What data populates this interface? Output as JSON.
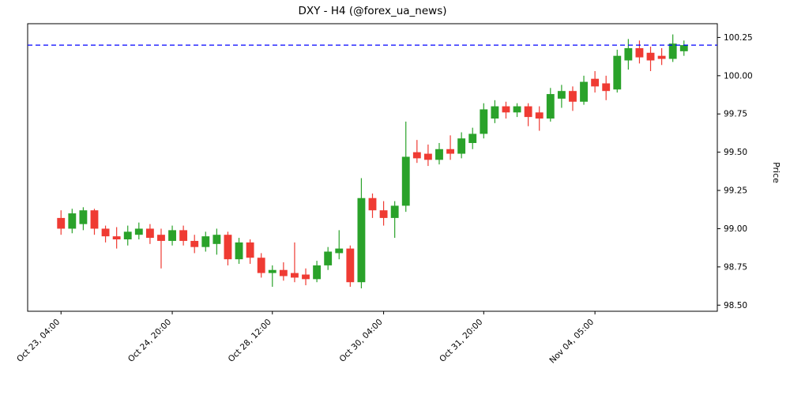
{
  "chart_data": {
    "type": "candlestick",
    "title": "DXY - H4 (@forex_ua_news)",
    "xlabel": "",
    "ylabel": "Price",
    "ylim": [
      98.46,
      100.34
    ],
    "grid": false,
    "y_axis_side": "right",
    "y_ticks": [
      98.5,
      98.75,
      99.0,
      99.25,
      99.5,
      99.75,
      100.0,
      100.25
    ],
    "x_ticks": [
      {
        "index": 0,
        "label": "Oct 23, 04:00"
      },
      {
        "index": 10,
        "label": "Oct 24, 20:00"
      },
      {
        "index": 19,
        "label": "Oct 28, 12:00"
      },
      {
        "index": 29,
        "label": "Oct 30, 04:00"
      },
      {
        "index": 38,
        "label": "Oct 31, 20:00"
      },
      {
        "index": 48,
        "label": "Nov 04, 05:00"
      }
    ],
    "hline": {
      "value": 100.2,
      "color": "#0000ff",
      "style": "dashed"
    },
    "colors": {
      "up": "#2aa22a",
      "down": "#ef3b33"
    },
    "candles": [
      {
        "o": 99.07,
        "h": 99.12,
        "l": 98.96,
        "c": 99.0
      },
      {
        "o": 99.0,
        "h": 99.13,
        "l": 98.97,
        "c": 99.1
      },
      {
        "o": 99.03,
        "h": 99.14,
        "l": 98.99,
        "c": 99.12
      },
      {
        "o": 99.12,
        "h": 99.13,
        "l": 98.96,
        "c": 99.0
      },
      {
        "o": 99.0,
        "h": 99.02,
        "l": 98.91,
        "c": 98.95
      },
      {
        "o": 98.95,
        "h": 99.01,
        "l": 98.87,
        "c": 98.93
      },
      {
        "o": 98.93,
        "h": 99.02,
        "l": 98.89,
        "c": 98.98
      },
      {
        "o": 98.96,
        "h": 99.04,
        "l": 98.93,
        "c": 99.0
      },
      {
        "o": 99.0,
        "h": 99.03,
        "l": 98.9,
        "c": 98.94
      },
      {
        "o": 98.96,
        "h": 99.0,
        "l": 98.74,
        "c": 98.92
      },
      {
        "o": 98.92,
        "h": 99.02,
        "l": 98.89,
        "c": 98.99
      },
      {
        "o": 98.99,
        "h": 99.02,
        "l": 98.89,
        "c": 98.92
      },
      {
        "o": 98.92,
        "h": 98.96,
        "l": 98.84,
        "c": 98.88
      },
      {
        "o": 98.88,
        "h": 98.98,
        "l": 98.85,
        "c": 98.95
      },
      {
        "o": 98.9,
        "h": 99.0,
        "l": 98.83,
        "c": 98.96
      },
      {
        "o": 98.96,
        "h": 98.98,
        "l": 98.76,
        "c": 98.8
      },
      {
        "o": 98.8,
        "h": 98.94,
        "l": 98.77,
        "c": 98.91
      },
      {
        "o": 98.91,
        "h": 98.93,
        "l": 98.77,
        "c": 98.81
      },
      {
        "o": 98.81,
        "h": 98.84,
        "l": 98.68,
        "c": 98.71
      },
      {
        "o": 98.71,
        "h": 98.76,
        "l": 98.62,
        "c": 98.73
      },
      {
        "o": 98.73,
        "h": 98.78,
        "l": 98.66,
        "c": 98.69
      },
      {
        "o": 98.71,
        "h": 98.91,
        "l": 98.65,
        "c": 98.68
      },
      {
        "o": 98.7,
        "h": 98.74,
        "l": 98.63,
        "c": 98.67
      },
      {
        "o": 98.67,
        "h": 98.79,
        "l": 98.65,
        "c": 98.76
      },
      {
        "o": 98.76,
        "h": 98.88,
        "l": 98.73,
        "c": 98.85
      },
      {
        "o": 98.84,
        "h": 98.99,
        "l": 98.8,
        "c": 98.87
      },
      {
        "o": 98.87,
        "h": 98.89,
        "l": 98.62,
        "c": 98.65
      },
      {
        "o": 98.65,
        "h": 99.33,
        "l": 98.61,
        "c": 99.2
      },
      {
        "o": 99.2,
        "h": 99.23,
        "l": 99.07,
        "c": 99.12
      },
      {
        "o": 99.12,
        "h": 99.18,
        "l": 99.02,
        "c": 99.07
      },
      {
        "o": 99.07,
        "h": 99.18,
        "l": 98.94,
        "c": 99.15
      },
      {
        "o": 99.15,
        "h": 99.7,
        "l": 99.11,
        "c": 99.47
      },
      {
        "o": 99.5,
        "h": 99.58,
        "l": 99.43,
        "c": 99.46
      },
      {
        "o": 99.49,
        "h": 99.55,
        "l": 99.41,
        "c": 99.45
      },
      {
        "o": 99.45,
        "h": 99.56,
        "l": 99.42,
        "c": 99.52
      },
      {
        "o": 99.52,
        "h": 99.61,
        "l": 99.45,
        "c": 99.49
      },
      {
        "o": 99.49,
        "h": 99.63,
        "l": 99.46,
        "c": 99.59
      },
      {
        "o": 99.56,
        "h": 99.66,
        "l": 99.52,
        "c": 99.62
      },
      {
        "o": 99.62,
        "h": 99.82,
        "l": 99.59,
        "c": 99.78
      },
      {
        "o": 99.72,
        "h": 99.84,
        "l": 99.69,
        "c": 99.8
      },
      {
        "o": 99.8,
        "h": 99.83,
        "l": 99.72,
        "c": 99.76
      },
      {
        "o": 99.76,
        "h": 99.82,
        "l": 99.73,
        "c": 99.8
      },
      {
        "o": 99.8,
        "h": 99.82,
        "l": 99.67,
        "c": 99.73
      },
      {
        "o": 99.76,
        "h": 99.8,
        "l": 99.64,
        "c": 99.72
      },
      {
        "o": 99.72,
        "h": 99.92,
        "l": 99.7,
        "c": 99.88
      },
      {
        "o": 99.85,
        "h": 99.94,
        "l": 99.79,
        "c": 99.9
      },
      {
        "o": 99.9,
        "h": 99.93,
        "l": 99.77,
        "c": 99.83
      },
      {
        "o": 99.83,
        "h": 100.0,
        "l": 99.81,
        "c": 99.96
      },
      {
        "o": 99.98,
        "h": 100.03,
        "l": 99.89,
        "c": 99.93
      },
      {
        "o": 99.95,
        "h": 100.0,
        "l": 99.84,
        "c": 99.9
      },
      {
        "o": 99.91,
        "h": 100.17,
        "l": 99.89,
        "c": 100.13
      },
      {
        "o": 100.1,
        "h": 100.24,
        "l": 100.04,
        "c": 100.18
      },
      {
        "o": 100.18,
        "h": 100.23,
        "l": 100.08,
        "c": 100.12
      },
      {
        "o": 100.15,
        "h": 100.19,
        "l": 100.03,
        "c": 100.1
      },
      {
        "o": 100.13,
        "h": 100.18,
        "l": 100.07,
        "c": 100.11
      },
      {
        "o": 100.11,
        "h": 100.27,
        "l": 100.09,
        "c": 100.21
      },
      {
        "o": 100.16,
        "h": 100.23,
        "l": 100.13,
        "c": 100.2
      }
    ]
  }
}
